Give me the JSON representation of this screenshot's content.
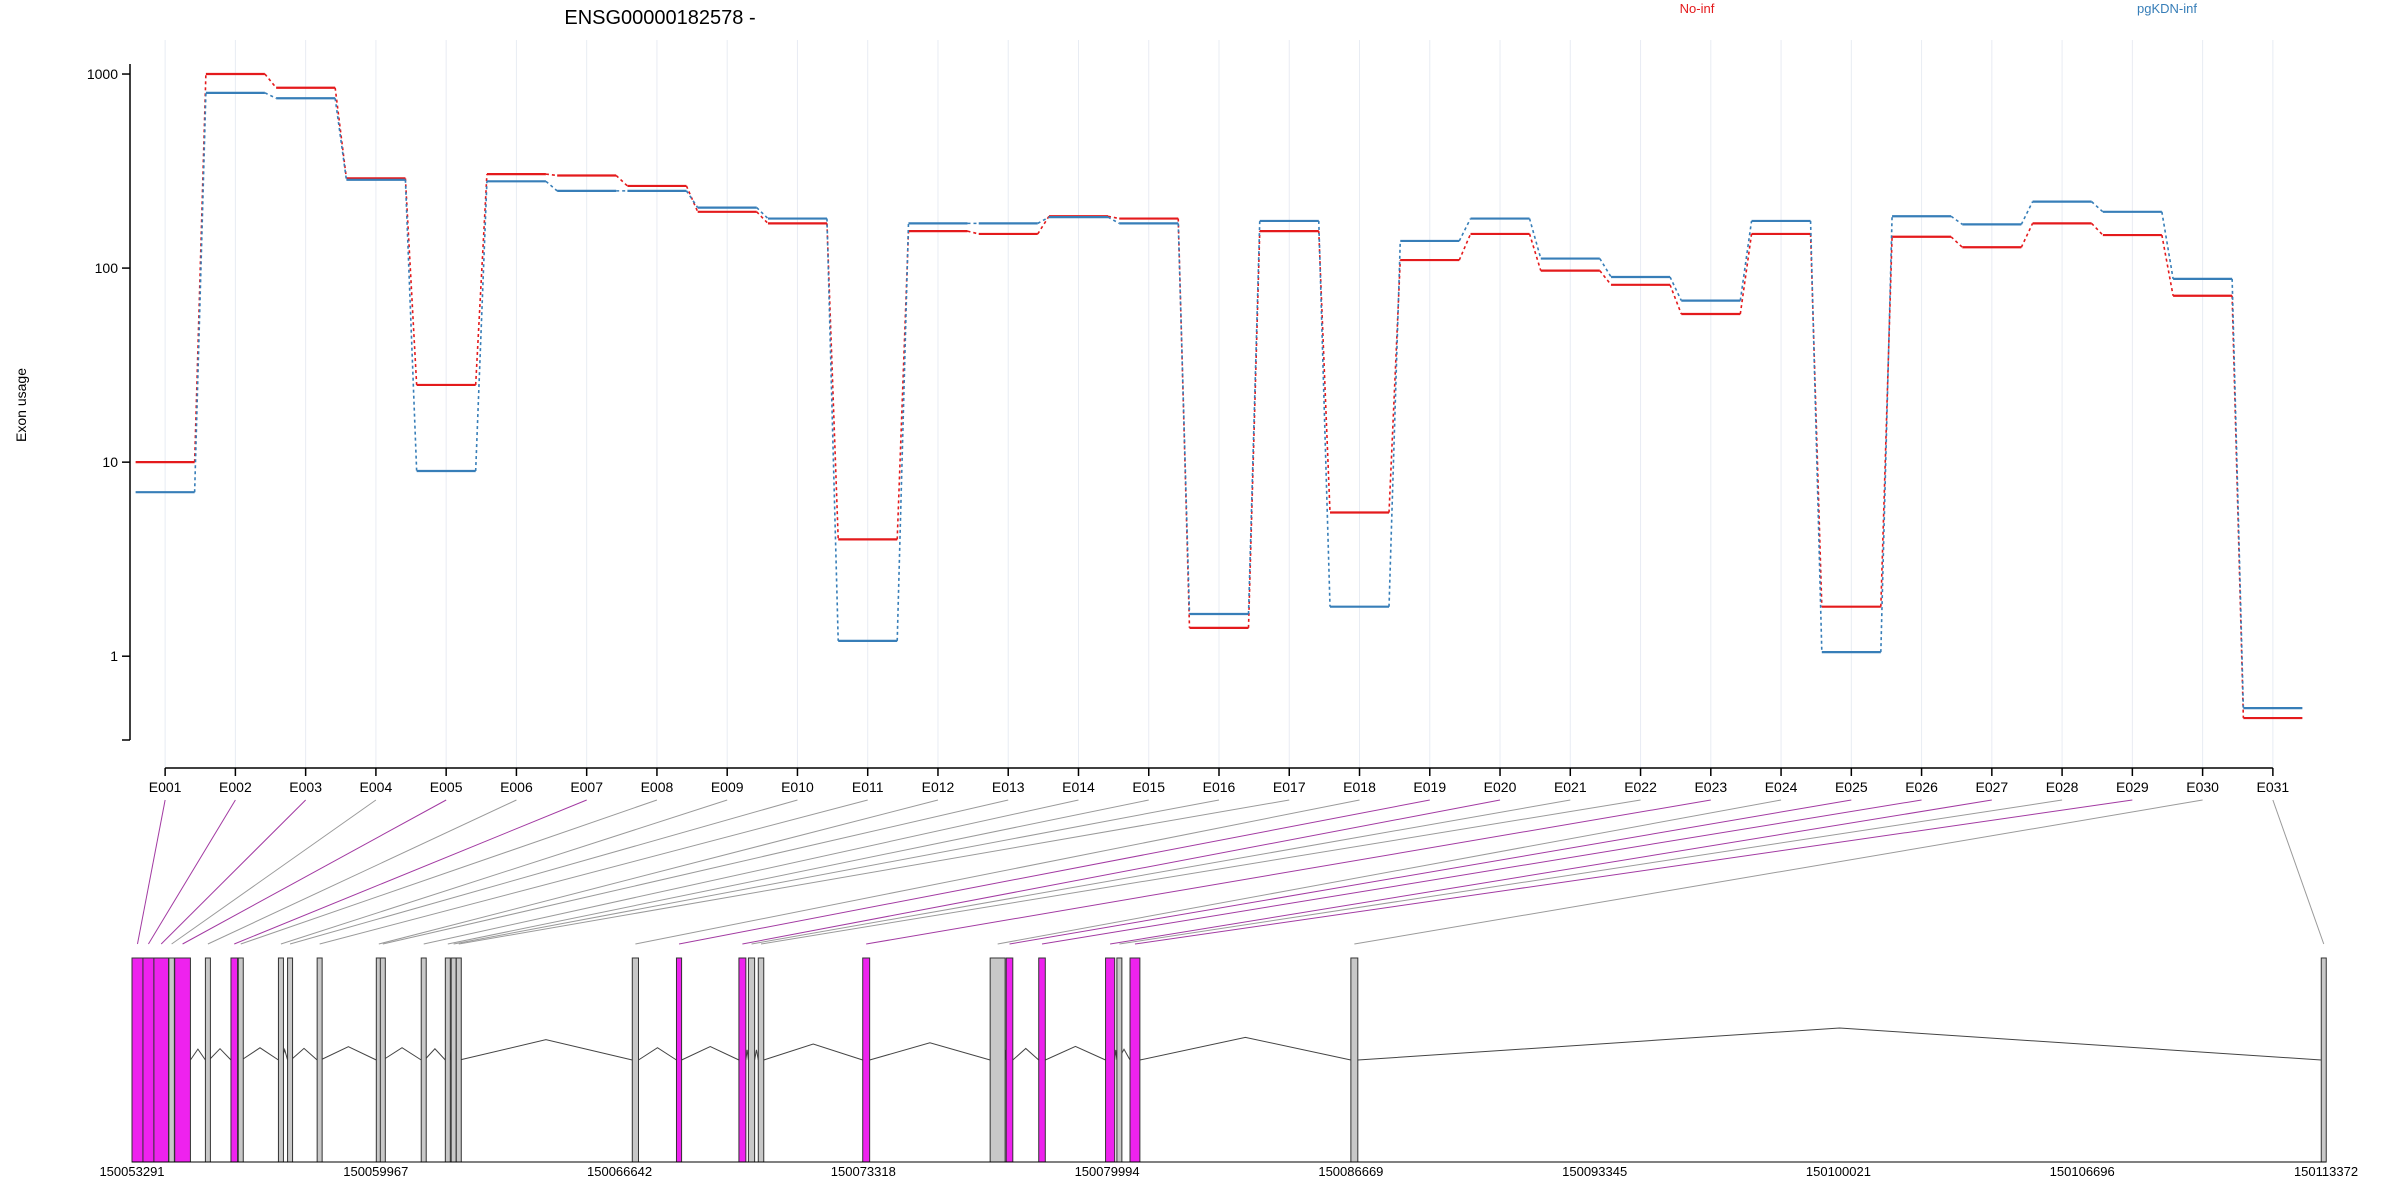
{
  "title": "ENSG00000182578 -",
  "legend": [
    {
      "name": "No-inf",
      "color": "#e41a1c"
    },
    {
      "name": "pgKDN-inf",
      "color": "#377eb8"
    }
  ],
  "colors": {
    "significant_exon": "#ee22ee",
    "normal_exon": "#c8c8c8",
    "connector_normal": "#9a9a9a",
    "connector_significant": "#a23aa2",
    "grid": "#e8ecf3"
  },
  "chart_data": {
    "type": "line",
    "ylabel": "Exon usage",
    "yscale": "log",
    "ylim": [
      0.37,
      1100
    ],
    "yticks": [
      "1",
      "10",
      "100",
      "1000"
    ],
    "categories": [
      "E001",
      "E002",
      "E003",
      "E004",
      "E005",
      "E006",
      "E007",
      "E008",
      "E009",
      "E010",
      "E011",
      "E012",
      "E013",
      "E014",
      "E015",
      "E016",
      "E017",
      "E018",
      "E019",
      "E020",
      "E021",
      "E022",
      "E023",
      "E024",
      "E025",
      "E026",
      "E027",
      "E028",
      "E029",
      "E030",
      "E031"
    ],
    "series": [
      {
        "name": "No-inf",
        "values": [
          10,
          1000,
          850,
          290,
          25,
          305,
          300,
          265,
          195,
          170,
          4,
          155,
          150,
          185,
          180,
          1.4,
          155,
          5.5,
          110,
          150,
          97,
          82,
          58,
          150,
          1.8,
          145,
          128,
          170,
          148,
          72,
          0.48
        ]
      },
      {
        "name": "pgKDN-inf",
        "values": [
          7,
          800,
          750,
          285,
          9,
          280,
          250,
          250,
          205,
          180,
          1.2,
          170,
          170,
          183,
          170,
          1.65,
          175,
          1.8,
          138,
          180,
          112,
          90,
          68,
          175,
          1.05,
          185,
          168,
          220,
          195,
          88,
          0.54
        ]
      }
    ],
    "gene_model": {
      "coord_ticks": [
        "150053291",
        "150059967",
        "150066642",
        "150073318",
        "150079994",
        "150086669",
        "150093345",
        "150100021",
        "150106696",
        "150113372"
      ],
      "coord_range": [
        150053291,
        150113372
      ],
      "exons": [
        {
          "id": "E001",
          "start": 150053291,
          "end": 150053591,
          "significant": true
        },
        {
          "id": "E002",
          "start": 150053591,
          "end": 150053891,
          "significant": true
        },
        {
          "id": "E003",
          "start": 150053891,
          "end": 150054291,
          "significant": true
        },
        {
          "id": "E004",
          "start": 150054301,
          "end": 150054451,
          "significant": false
        },
        {
          "id": "E005",
          "start": 150054461,
          "end": 150054891,
          "significant": true
        },
        {
          "id": "E006",
          "start": 150055301,
          "end": 150055401,
          "significant": false
        },
        {
          "id": "E007",
          "start": 150056001,
          "end": 150056181,
          "significant": true
        },
        {
          "id": "E008",
          "start": 150056201,
          "end": 150056291,
          "significant": false
        },
        {
          "id": "E009",
          "start": 150057301,
          "end": 150057391,
          "significant": false
        },
        {
          "id": "E010",
          "start": 150057551,
          "end": 150057641,
          "significant": false
        },
        {
          "id": "E011",
          "start": 150058361,
          "end": 150058451,
          "significant": false
        },
        {
          "id": "E012",
          "start": 150059981,
          "end": 150060071,
          "significant": false
        },
        {
          "id": "E013",
          "start": 150060091,
          "end": 150060161,
          "significant": false
        },
        {
          "id": "E014",
          "start": 150061211,
          "end": 150061301,
          "significant": false
        },
        {
          "id": "E015",
          "start": 150061871,
          "end": 150061961,
          "significant": false
        },
        {
          "id": "E016",
          "start": 150062031,
          "end": 150062121,
          "significant": false
        },
        {
          "id": "E017",
          "start": 150062171,
          "end": 150062261,
          "significant": false
        },
        {
          "id": "E018",
          "start": 150066991,
          "end": 150067161,
          "significant": false
        },
        {
          "id": "E019",
          "start": 150068201,
          "end": 150068341,
          "significant": true
        },
        {
          "id": "E020",
          "start": 150069911,
          "end": 150070101,
          "significant": true
        },
        {
          "id": "E021",
          "start": 150070171,
          "end": 150070341,
          "significant": false
        },
        {
          "id": "E022",
          "start": 150070441,
          "end": 150070591,
          "significant": false
        },
        {
          "id": "E023",
          "start": 150073301,
          "end": 150073491,
          "significant": true
        },
        {
          "id": "E024",
          "start": 150076791,
          "end": 150077201,
          "significant": false
        },
        {
          "id": "E025",
          "start": 150077231,
          "end": 150077411,
          "significant": true
        },
        {
          "id": "E026",
          "start": 150078121,
          "end": 150078301,
          "significant": true
        },
        {
          "id": "E027",
          "start": 150079951,
          "end": 150080201,
          "significant": true
        },
        {
          "id": "E028",
          "start": 150080261,
          "end": 150080291,
          "significant": false
        },
        {
          "id": "E029",
          "start": 150080621,
          "end": 150080891,
          "significant": true
        },
        {
          "id": "E030",
          "start": 150086669,
          "end": 150086859,
          "significant": false
        },
        {
          "id": "E031",
          "start": 150113242,
          "end": 150113372,
          "significant": false
        }
      ]
    }
  }
}
